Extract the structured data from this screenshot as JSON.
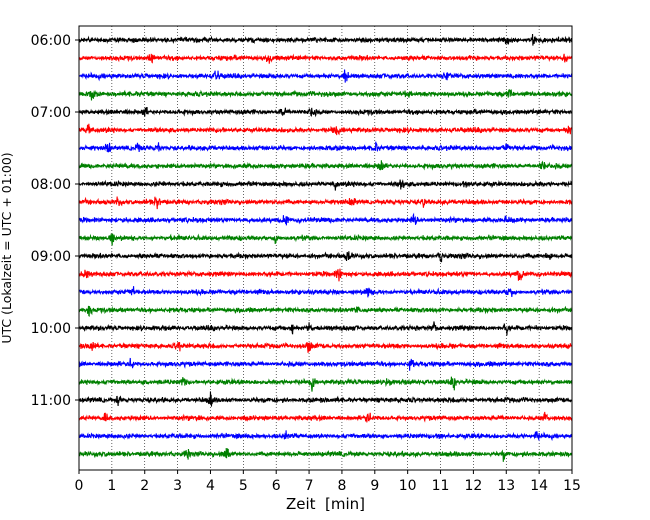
{
  "chart_data": {
    "type": "line",
    "title": "",
    "xlabel": "Zeit  [min]",
    "ylabel": "UTC (Lokalzeit = UTC + 01:00)",
    "xlim": [
      0,
      15
    ],
    "x_ticks": [
      "0",
      "1",
      "2",
      "3",
      "4",
      "5",
      "6",
      "7",
      "8",
      "9",
      "10",
      "11",
      "12",
      "13",
      "14",
      "15"
    ],
    "y_tick_labels": [
      "06:00",
      "07:00",
      "08:00",
      "09:00",
      "10:00",
      "11:00"
    ],
    "grid": "vertical dotted at each minute",
    "trace_interval_min": 15,
    "first_trace": "06:00",
    "colors": [
      "#000000",
      "#ff0000",
      "#0000ff",
      "#008000"
    ],
    "series": [
      {
        "start": "06:00",
        "color": "#000000",
        "spikes": [
          13.8,
          13.0
        ]
      },
      {
        "start": "06:15",
        "color": "#ff0000",
        "spikes": [
          5.8,
          14.8,
          2.2
        ]
      },
      {
        "start": "06:30",
        "color": "#0000ff",
        "spikes": [
          11.2,
          8.1,
          4.2
        ]
      },
      {
        "start": "06:45",
        "color": "#008000",
        "spikes": [
          0.4,
          10.0,
          13.1
        ]
      },
      {
        "start": "07:00",
        "color": "#000000",
        "spikes": [
          2.0,
          7.1,
          6.2
        ]
      },
      {
        "start": "07:15",
        "color": "#ff0000",
        "spikes": [
          7.8,
          14.9,
          0.3
        ]
      },
      {
        "start": "07:30",
        "color": "#0000ff",
        "spikes": [
          0.9,
          1.8,
          2.4,
          9.0,
          13.0
        ]
      },
      {
        "start": "07:45",
        "color": "#008000",
        "spikes": [
          9.2,
          14.1
        ]
      },
      {
        "start": "08:00",
        "color": "#000000",
        "spikes": [
          7.8,
          11.8,
          9.8
        ]
      },
      {
        "start": "08:15",
        "color": "#ff0000",
        "spikes": [
          1.2,
          2.4,
          8.3,
          10.5
        ]
      },
      {
        "start": "08:30",
        "color": "#0000ff",
        "spikes": [
          6.3,
          10.2,
          13.0
        ]
      },
      {
        "start": "08:45",
        "color": "#008000",
        "spikes": [
          1.0,
          6.0
        ]
      },
      {
        "start": "09:00",
        "color": "#000000",
        "spikes": [
          11.0,
          14.3,
          8.2
        ]
      },
      {
        "start": "09:15",
        "color": "#ff0000",
        "spikes": [
          0.2,
          7.9,
          13.4
        ]
      },
      {
        "start": "09:30",
        "color": "#0000ff",
        "spikes": [
          1.6,
          8.8,
          13.1
        ]
      },
      {
        "start": "09:45",
        "color": "#008000",
        "spikes": [
          0.3,
          8.4
        ]
      },
      {
        "start": "10:00",
        "color": "#000000",
        "spikes": [
          6.5,
          7.0,
          10.8,
          13.0
        ]
      },
      {
        "start": "10:15",
        "color": "#ff0000",
        "spikes": [
          0.4,
          7.0,
          3.0
        ]
      },
      {
        "start": "10:30",
        "color": "#0000ff",
        "spikes": [
          1.6,
          10.1
        ]
      },
      {
        "start": "10:45",
        "color": "#008000",
        "spikes": [
          3.2,
          7.1,
          9.4,
          11.4
        ]
      },
      {
        "start": "11:00",
        "color": "#000000",
        "spikes": [
          1.2,
          4.0
        ]
      },
      {
        "start": "11:15",
        "color": "#ff0000",
        "spikes": [
          0.8,
          8.8,
          14.2
        ]
      },
      {
        "start": "11:30",
        "color": "#0000ff",
        "spikes": [
          6.3,
          11.0,
          13.9
        ]
      },
      {
        "start": "11:45",
        "color": "#008000",
        "spikes": [
          3.3,
          4.5,
          12.9
        ]
      }
    ]
  }
}
